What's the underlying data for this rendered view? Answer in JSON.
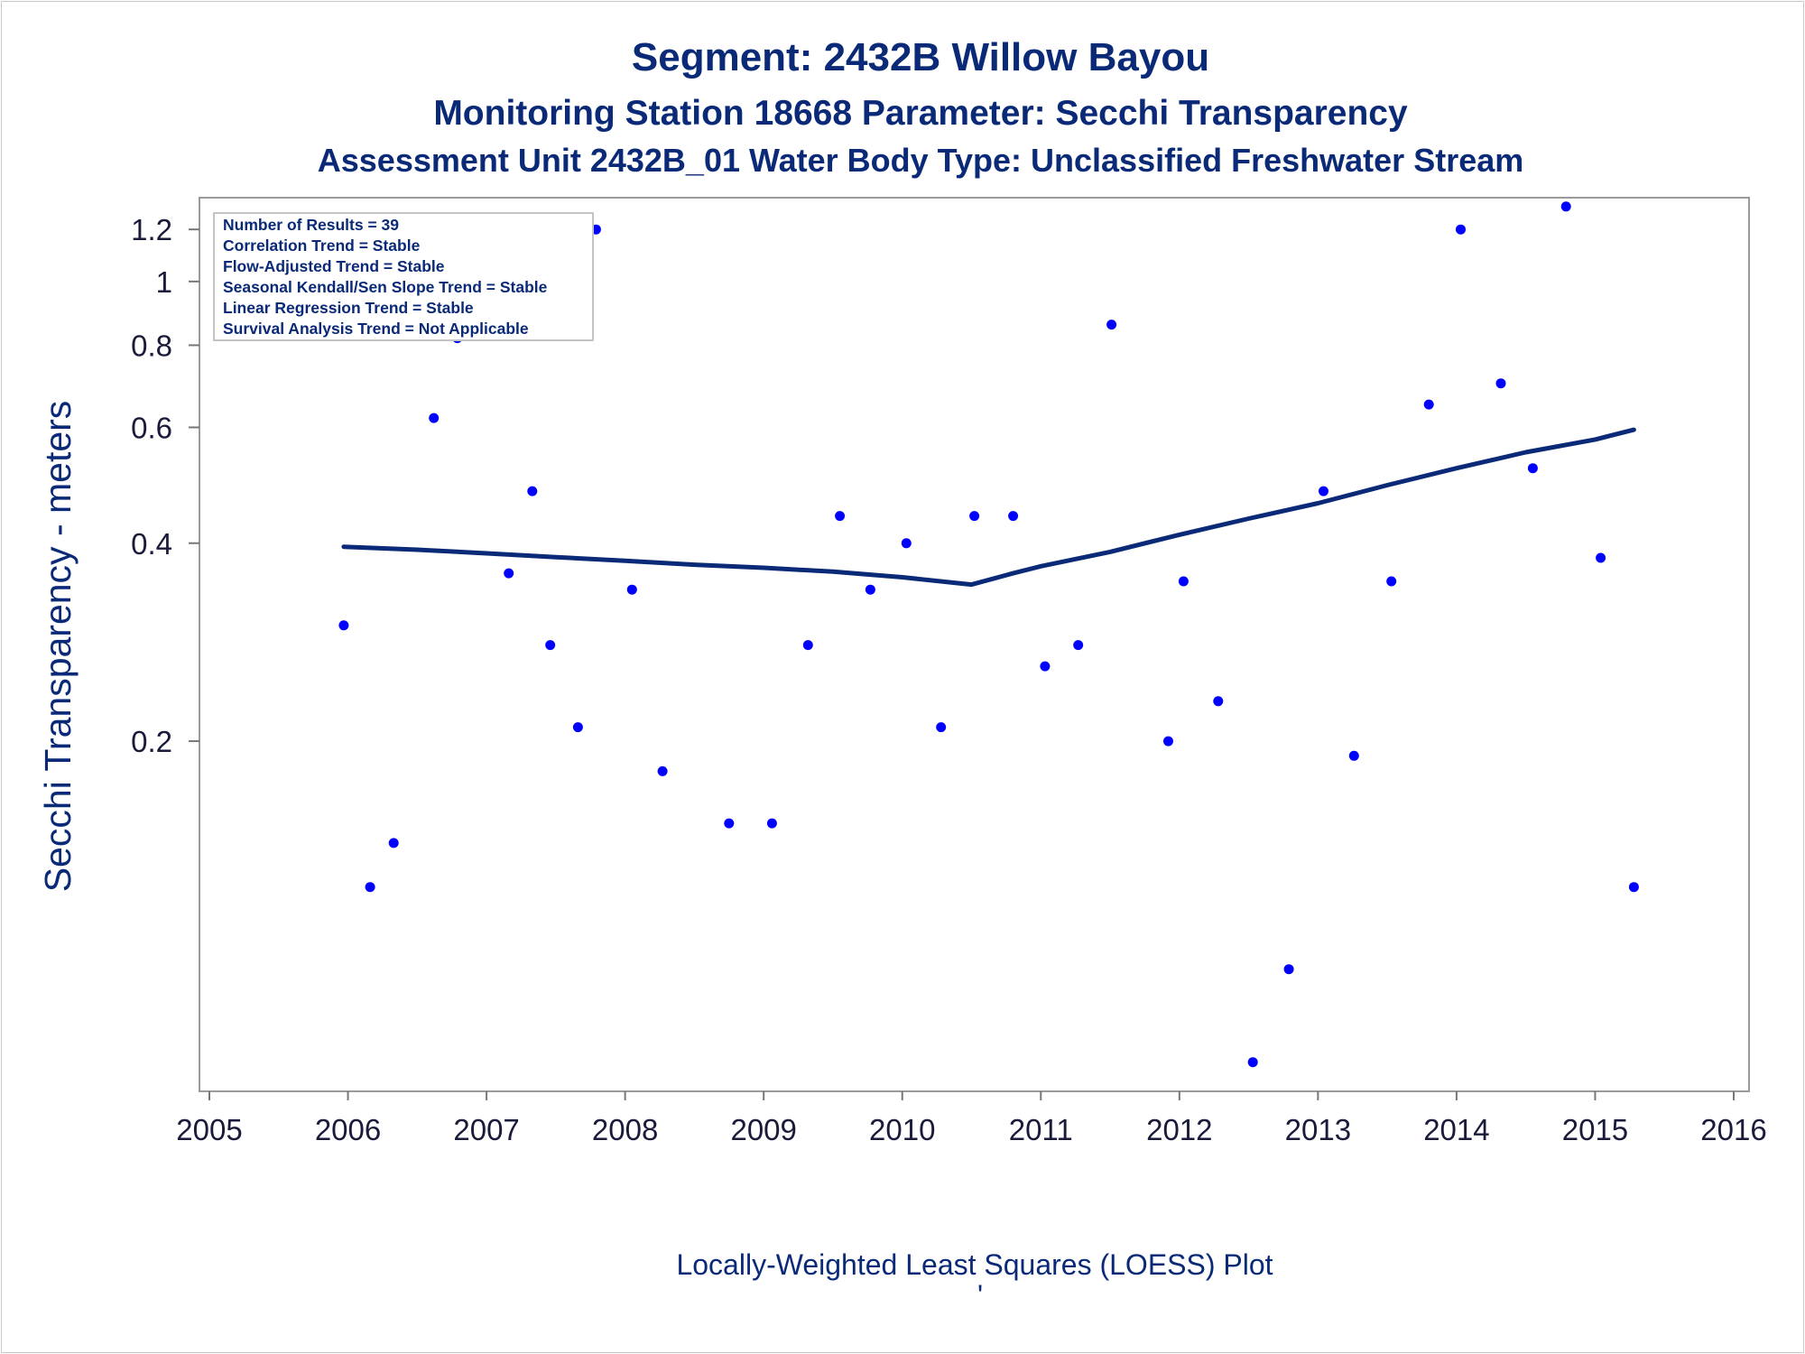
{
  "chart_data": {
    "type": "scatter",
    "title": "Segment: 2432B  Willow Bayou",
    "subtitle": "Monitoring Station 18668 Parameter: Secchi Transparency",
    "subtitle2": "Assessment Unit 2432B_01   Water Body Type: Unclassified Freshwater Stream",
    "xlabel": "Locally-Weighted Least Squares (LOESS) Plot",
    "ylabel": "Secchi Transparency - meters",
    "footnote_mark": "'",
    "xlim": [
      2005,
      2016
    ],
    "ylim": [
      0.06,
      1.32
    ],
    "y_scale": "log",
    "x_ticks": [
      2005,
      2006,
      2007,
      2008,
      2009,
      2010,
      2011,
      2012,
      2013,
      2014,
      2015,
      2016
    ],
    "y_ticks": [
      0.2,
      0.4,
      0.6,
      0.8,
      1,
      1.2
    ],
    "grid": false,
    "legend_position": "top-left",
    "stats_box": [
      "Number of Results = 39",
      "Correlation Trend = Stable",
      "Flow-Adjusted Trend = Stable",
      "Seasonal Kendall/Sen Slope Trend = Stable",
      "Linear Regression Trend = Stable",
      "Survival Analysis Trend = Not Applicable"
    ],
    "series": [
      {
        "kind": "points",
        "color": "#0000ff",
        "points": [
          [
            2005.97,
            0.3
          ],
          [
            2006.16,
            0.12
          ],
          [
            2006.33,
            0.14
          ],
          [
            2006.62,
            0.62
          ],
          [
            2006.79,
            0.82
          ],
          [
            2007.16,
            0.36
          ],
          [
            2007.33,
            0.48
          ],
          [
            2007.46,
            0.28
          ],
          [
            2007.66,
            0.21
          ],
          [
            2007.79,
            1.2
          ],
          [
            2008.05,
            0.34
          ],
          [
            2008.27,
            0.18
          ],
          [
            2008.75,
            0.15
          ],
          [
            2009.06,
            0.15
          ],
          [
            2009.32,
            0.28
          ],
          [
            2009.55,
            0.44
          ],
          [
            2009.77,
            0.34
          ],
          [
            2010.03,
            0.4
          ],
          [
            2010.28,
            0.21
          ],
          [
            2010.52,
            0.44
          ],
          [
            2010.8,
            0.44
          ],
          [
            2011.03,
            0.26
          ],
          [
            2011.27,
            0.28
          ],
          [
            2011.51,
            0.86
          ],
          [
            2011.92,
            0.2
          ],
          [
            2012.03,
            0.35
          ],
          [
            2012.28,
            0.23
          ],
          [
            2012.53,
            0.065
          ],
          [
            2012.79,
            0.09
          ],
          [
            2013.04,
            0.48
          ],
          [
            2013.26,
            0.19
          ],
          [
            2013.53,
            0.35
          ],
          [
            2013.8,
            0.65
          ],
          [
            2014.03,
            1.2
          ],
          [
            2014.32,
            0.7
          ],
          [
            2014.55,
            0.52
          ],
          [
            2014.79,
            1.3
          ],
          [
            2015.04,
            0.38
          ],
          [
            2015.28,
            0.12
          ]
        ]
      },
      {
        "kind": "loess",
        "color": "#0a2a78",
        "points": [
          [
            2005.97,
            0.395
          ],
          [
            2006.5,
            0.391
          ],
          [
            2007.0,
            0.386
          ],
          [
            2007.5,
            0.381
          ],
          [
            2008.0,
            0.376
          ],
          [
            2008.5,
            0.371
          ],
          [
            2009.0,
            0.367
          ],
          [
            2009.5,
            0.362
          ],
          [
            2010.0,
            0.355
          ],
          [
            2010.5,
            0.346
          ],
          [
            2010.8,
            0.36
          ],
          [
            2011.0,
            0.369
          ],
          [
            2011.5,
            0.388
          ],
          [
            2012.0,
            0.412
          ],
          [
            2012.5,
            0.436
          ],
          [
            2013.0,
            0.46
          ],
          [
            2013.5,
            0.49
          ],
          [
            2014.0,
            0.52
          ],
          [
            2014.5,
            0.55
          ],
          [
            2015.0,
            0.575
          ],
          [
            2015.28,
            0.595
          ]
        ]
      }
    ]
  }
}
